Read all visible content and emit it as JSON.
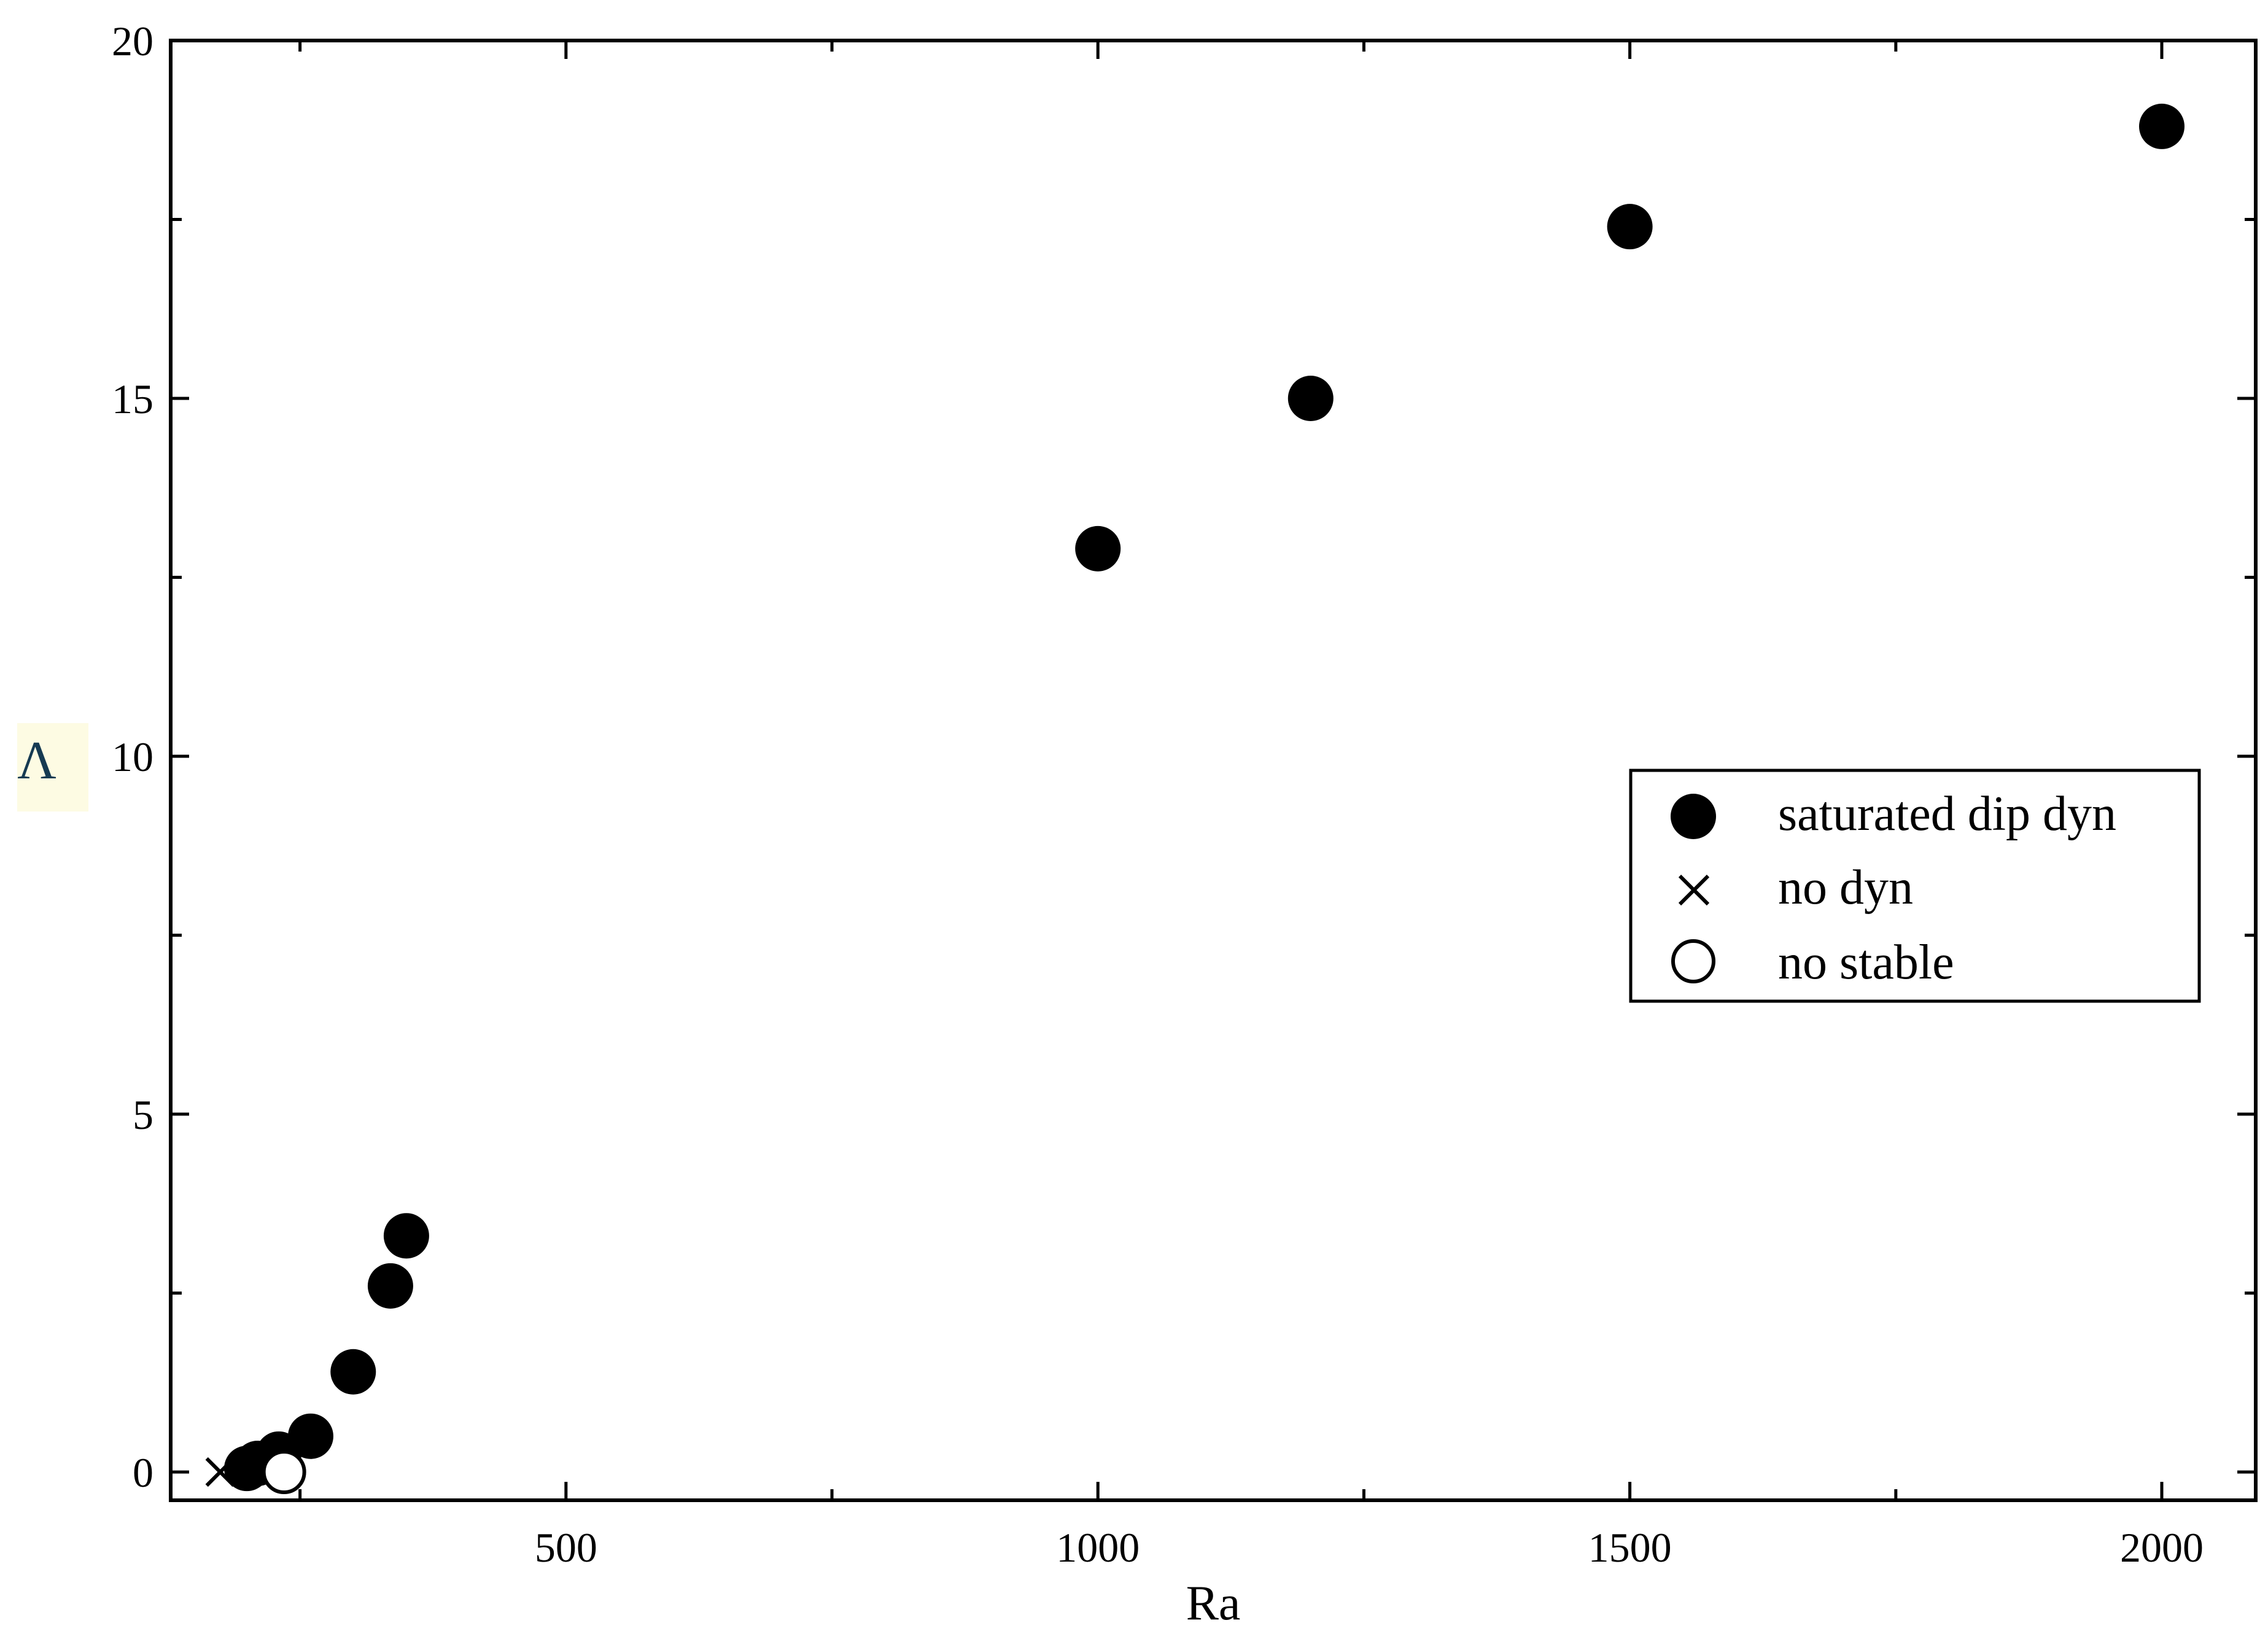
{
  "chart_data": {
    "type": "scatter",
    "xlabel": "Ra",
    "ylabel": "Λ",
    "xlim": [
      100,
      2100
    ],
    "ylim": [
      -0.5,
      20
    ],
    "x_ticks": [
      500,
      1000,
      1500,
      2000
    ],
    "x_minor_ticks": [
      250,
      750,
      1250,
      1750
    ],
    "y_ticks": [
      0,
      5,
      10,
      15,
      20
    ],
    "y_minor_ticks": [
      2.5,
      7.5,
      12.5,
      17.5
    ],
    "grid": false,
    "legend_position": "center-right",
    "series": [
      {
        "name": "saturated dip dyn",
        "marker": "filled-circle",
        "color": "#000000",
        "points": [
          {
            "x": 200,
            "y": 0.05
          },
          {
            "x": 210,
            "y": 0.12
          },
          {
            "x": 230,
            "y": 0.25
          },
          {
            "x": 260,
            "y": 0.5
          },
          {
            "x": 300,
            "y": 1.4
          },
          {
            "x": 335,
            "y": 2.6
          },
          {
            "x": 350,
            "y": 3.3
          },
          {
            "x": 1000,
            "y": 12.9
          },
          {
            "x": 1200,
            "y": 15.0
          },
          {
            "x": 1500,
            "y": 17.4
          },
          {
            "x": 2000,
            "y": 18.8
          }
        ]
      },
      {
        "name": "no dyn",
        "marker": "cross",
        "color": "#000000",
        "points": [
          {
            "x": 175,
            "y": 0.0
          }
        ]
      },
      {
        "name": "no stable",
        "marker": "open-circle",
        "color": "#000000",
        "points": [
          {
            "x": 235,
            "y": 0.0
          }
        ]
      }
    ]
  }
}
